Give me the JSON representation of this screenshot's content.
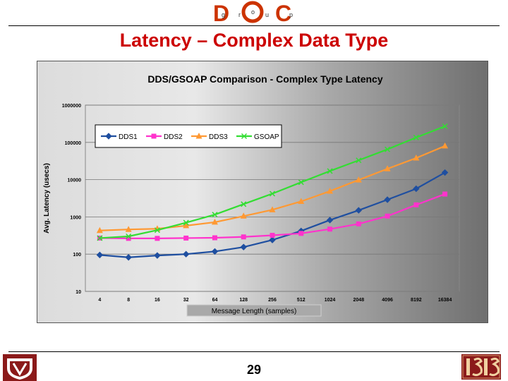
{
  "header": {
    "logo_letters": [
      "g",
      "r",
      "o",
      "u",
      "p"
    ],
    "title": "Latency – Complex Data Type"
  },
  "footer": {
    "page_number": "29"
  },
  "colors": {
    "title": "#cc0000",
    "DDS1": "#1f4fa0",
    "DDS2": "#ff33cc",
    "DDS3": "#ff9933",
    "GSOAP": "#33dd33"
  },
  "chart_data": {
    "type": "line",
    "title": "DDS/GSOAP Comparison - Complex Type Latency",
    "xlabel": "Message Length (samples)",
    "ylabel": "Avg. Latency (usecs)",
    "categories": [
      "4",
      "8",
      "16",
      "32",
      "64",
      "128",
      "256",
      "512",
      "1024",
      "2048",
      "4096",
      "8192",
      "16384"
    ],
    "y_ticks": [
      "10",
      "100",
      "1000",
      "10000",
      "100000",
      "1000000"
    ],
    "ylim": [
      10,
      1000000
    ],
    "yscale": "log",
    "grid": true,
    "legend_position": "top-left",
    "series": [
      {
        "name": "DDS1",
        "marker": "diamond",
        "color": "#1f4fa0",
        "values": [
          95,
          82,
          92,
          100,
          118,
          155,
          240,
          420,
          820,
          1500,
          2900,
          5700,
          15500
        ]
      },
      {
        "name": "DDS2",
        "marker": "square",
        "color": "#ff33cc",
        "values": [
          270,
          265,
          265,
          270,
          275,
          290,
          320,
          360,
          470,
          650,
          1050,
          2100,
          4100
        ]
      },
      {
        "name": "DDS3",
        "marker": "triangle",
        "color": "#ff9933",
        "values": [
          430,
          460,
          480,
          580,
          720,
          1050,
          1550,
          2600,
          4900,
          9800,
          19500,
          38000,
          80000
        ]
      },
      {
        "name": "GSOAP",
        "marker": "x",
        "color": "#33dd33",
        "values": [
          270,
          300,
          440,
          700,
          1150,
          2200,
          4200,
          8500,
          17000,
          33000,
          65000,
          135000,
          270000
        ]
      }
    ]
  }
}
